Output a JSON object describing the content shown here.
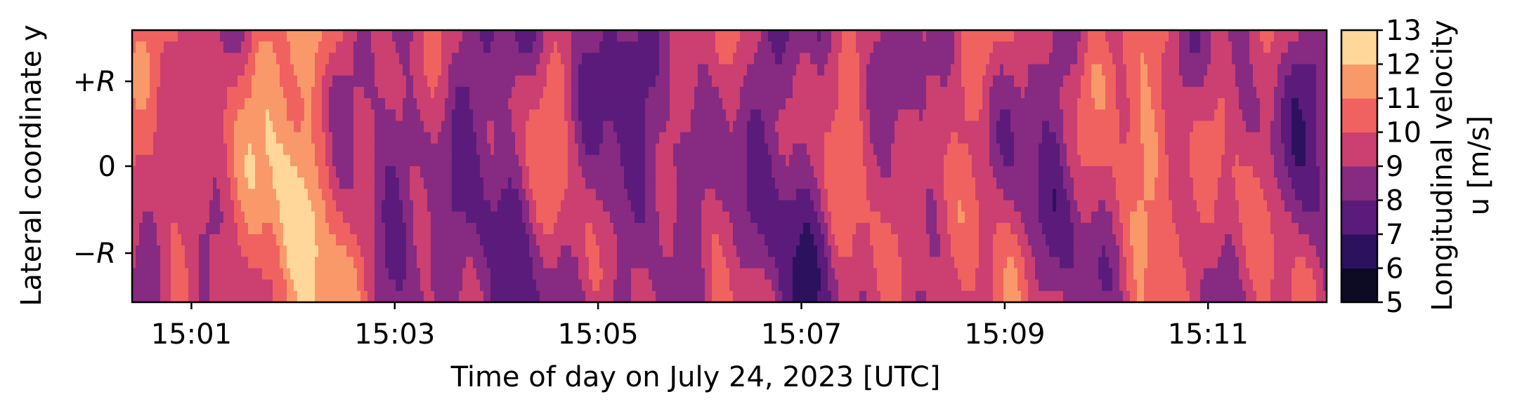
{
  "chart_data": {
    "type": "heatmap",
    "title": "",
    "xlabel": "Time of day on July 24, 2023 [UTC]",
    "ylabel": "Lateral coordinate y",
    "x_ticks": [
      "15:01",
      "15:03",
      "15:05",
      "15:07",
      "15:09",
      "15:11"
    ],
    "y_ticks": [
      "+R",
      "0",
      "−R"
    ],
    "colorbar": {
      "label_line1": "Longitudinal velocity",
      "label_line2": "u [m/s]",
      "ticks": [
        "13",
        "12",
        "11",
        "10",
        "9",
        "8",
        "7",
        "6",
        "5"
      ],
      "levels": [
        5,
        6,
        7,
        8,
        9,
        10,
        11,
        12,
        13
      ],
      "colormap": "magma",
      "colors": [
        "#0d0a24",
        "#2c115f",
        "#5b1b7a",
        "#872a81",
        "#cb3f71",
        "#f0625f",
        "#f9996a",
        "#ffd79a"
      ]
    },
    "xlim": [
      "15:00:25",
      "15:12:10"
    ],
    "ylim": [
      "-1.55R",
      "+1.55R"
    ],
    "grid": false,
    "legend": "colorbar-right",
    "time_profile": [
      {
        "t": "15:00:30",
        "u": 9.3
      },
      {
        "t": "15:01:00",
        "u": 9.4
      },
      {
        "t": "15:01:30",
        "u": 10.6
      },
      {
        "t": "15:02:00",
        "u": 11.3
      },
      {
        "t": "15:02:30",
        "u": 10.4
      },
      {
        "t": "15:03:00",
        "u": 8.6
      },
      {
        "t": "15:03:30",
        "u": 8.4
      },
      {
        "t": "15:04:00",
        "u": 8.6
      },
      {
        "t": "15:04:30",
        "u": 9.2
      },
      {
        "t": "15:05:00",
        "u": 8.4
      },
      {
        "t": "15:05:30",
        "u": 8.9
      },
      {
        "t": "15:06:00",
        "u": 8.6
      },
      {
        "t": "15:06:30",
        "u": 9.1
      },
      {
        "t": "15:07:00",
        "u": 8.2
      },
      {
        "t": "15:07:30",
        "u": 9.4
      },
      {
        "t": "15:08:00",
        "u": 9.6
      },
      {
        "t": "15:08:30",
        "u": 9.6
      },
      {
        "t": "15:09:00",
        "u": 9.3
      },
      {
        "t": "15:09:30",
        "u": 9.0
      },
      {
        "t": "15:10:00",
        "u": 9.2
      },
      {
        "t": "15:10:30",
        "u": 10.7
      },
      {
        "t": "15:11:00",
        "u": 9.6
      },
      {
        "t": "15:11:30",
        "u": 9.0
      },
      {
        "t": "15:12:00",
        "u": 8.8
      }
    ]
  }
}
